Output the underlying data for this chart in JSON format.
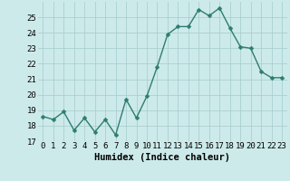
{
  "x": [
    0,
    1,
    2,
    3,
    4,
    5,
    6,
    7,
    8,
    9,
    10,
    11,
    12,
    13,
    14,
    15,
    16,
    17,
    18,
    19,
    20,
    21,
    22,
    23
  ],
  "y": [
    18.6,
    18.4,
    18.9,
    17.7,
    18.5,
    17.6,
    18.4,
    17.4,
    19.7,
    18.5,
    19.9,
    21.8,
    23.9,
    24.4,
    24.4,
    25.5,
    25.1,
    25.6,
    24.3,
    23.1,
    23.0,
    21.5,
    21.1,
    21.1
  ],
  "line_color": "#2e7d6e",
  "marker_color": "#2e7d6e",
  "bg_color": "#cdeaea",
  "grid_color": "#aacfcf",
  "xlabel": "Humidex (Indice chaleur)",
  "ylabel": "",
  "ylim": [
    17,
    26
  ],
  "xlim": [
    -0.5,
    23.5
  ],
  "yticks": [
    17,
    18,
    19,
    20,
    21,
    22,
    23,
    24,
    25
  ],
  "xtick_labels": [
    "0",
    "1",
    "2",
    "3",
    "4",
    "5",
    "6",
    "7",
    "8",
    "9",
    "10",
    "11",
    "12",
    "13",
    "14",
    "15",
    "16",
    "17",
    "18",
    "19",
    "20",
    "21",
    "22",
    "23"
  ],
  "xlabel_fontsize": 7.5,
  "tick_fontsize": 6.5,
  "line_width": 1.0,
  "marker_size": 2.5
}
